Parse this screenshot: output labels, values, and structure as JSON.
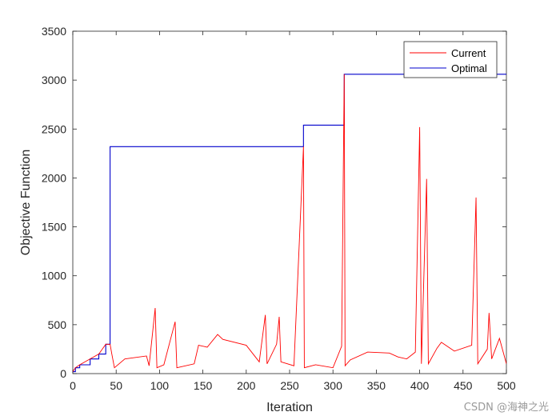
{
  "chart_data": {
    "type": "line",
    "title": "",
    "xlabel": "Iteration",
    "ylabel": "Objective Function",
    "xlim": [
      0,
      500
    ],
    "ylim": [
      0,
      3500
    ],
    "xticks": [
      0,
      50,
      100,
      150,
      200,
      250,
      300,
      350,
      400,
      450,
      500
    ],
    "yticks": [
      0,
      500,
      1000,
      1500,
      2000,
      2500,
      3000,
      3500
    ],
    "grid": false,
    "legend_position": "top-right",
    "colors": {
      "current": "#ff0000",
      "optimal": "#0000cc"
    },
    "series": [
      {
        "name": "Optimal",
        "color": "#0000cc",
        "x": [
          0,
          3,
          3,
          8,
          8,
          20,
          20,
          30,
          30,
          38,
          38,
          43,
          43,
          266,
          266,
          313,
          313,
          500
        ],
        "y": [
          20,
          20,
          60,
          60,
          90,
          90,
          150,
          150,
          200,
          200,
          300,
          300,
          2320,
          2320,
          2540,
          2540,
          3060,
          3060
        ]
      },
      {
        "name": "Current",
        "color": "#ff0000",
        "x": [
          0,
          3,
          8,
          20,
          30,
          38,
          43,
          45,
          48,
          60,
          85,
          88,
          95,
          97,
          105,
          118,
          120,
          140,
          145,
          155,
          167,
          173,
          200,
          215,
          222,
          224,
          235,
          238,
          240,
          255,
          266,
          267,
          280,
          300,
          310,
          313,
          314,
          320,
          340,
          365,
          375,
          385,
          395,
          400,
          402,
          408,
          410,
          420,
          425,
          440,
          460,
          465,
          467,
          478,
          480,
          483,
          492,
          500
        ],
        "y": [
          20,
          60,
          90,
          150,
          200,
          300,
          300,
          200,
          60,
          150,
          180,
          80,
          670,
          60,
          90,
          530,
          60,
          100,
          290,
          270,
          400,
          350,
          290,
          120,
          600,
          100,
          300,
          580,
          120,
          80,
          2320,
          60,
          90,
          60,
          280,
          3060,
          80,
          140,
          220,
          210,
          170,
          150,
          220,
          2520,
          100,
          1990,
          100,
          260,
          320,
          230,
          290,
          1800,
          100,
          250,
          620,
          150,
          360,
          100
        ]
      }
    ]
  },
  "watermark": "CSDN @海神之光"
}
